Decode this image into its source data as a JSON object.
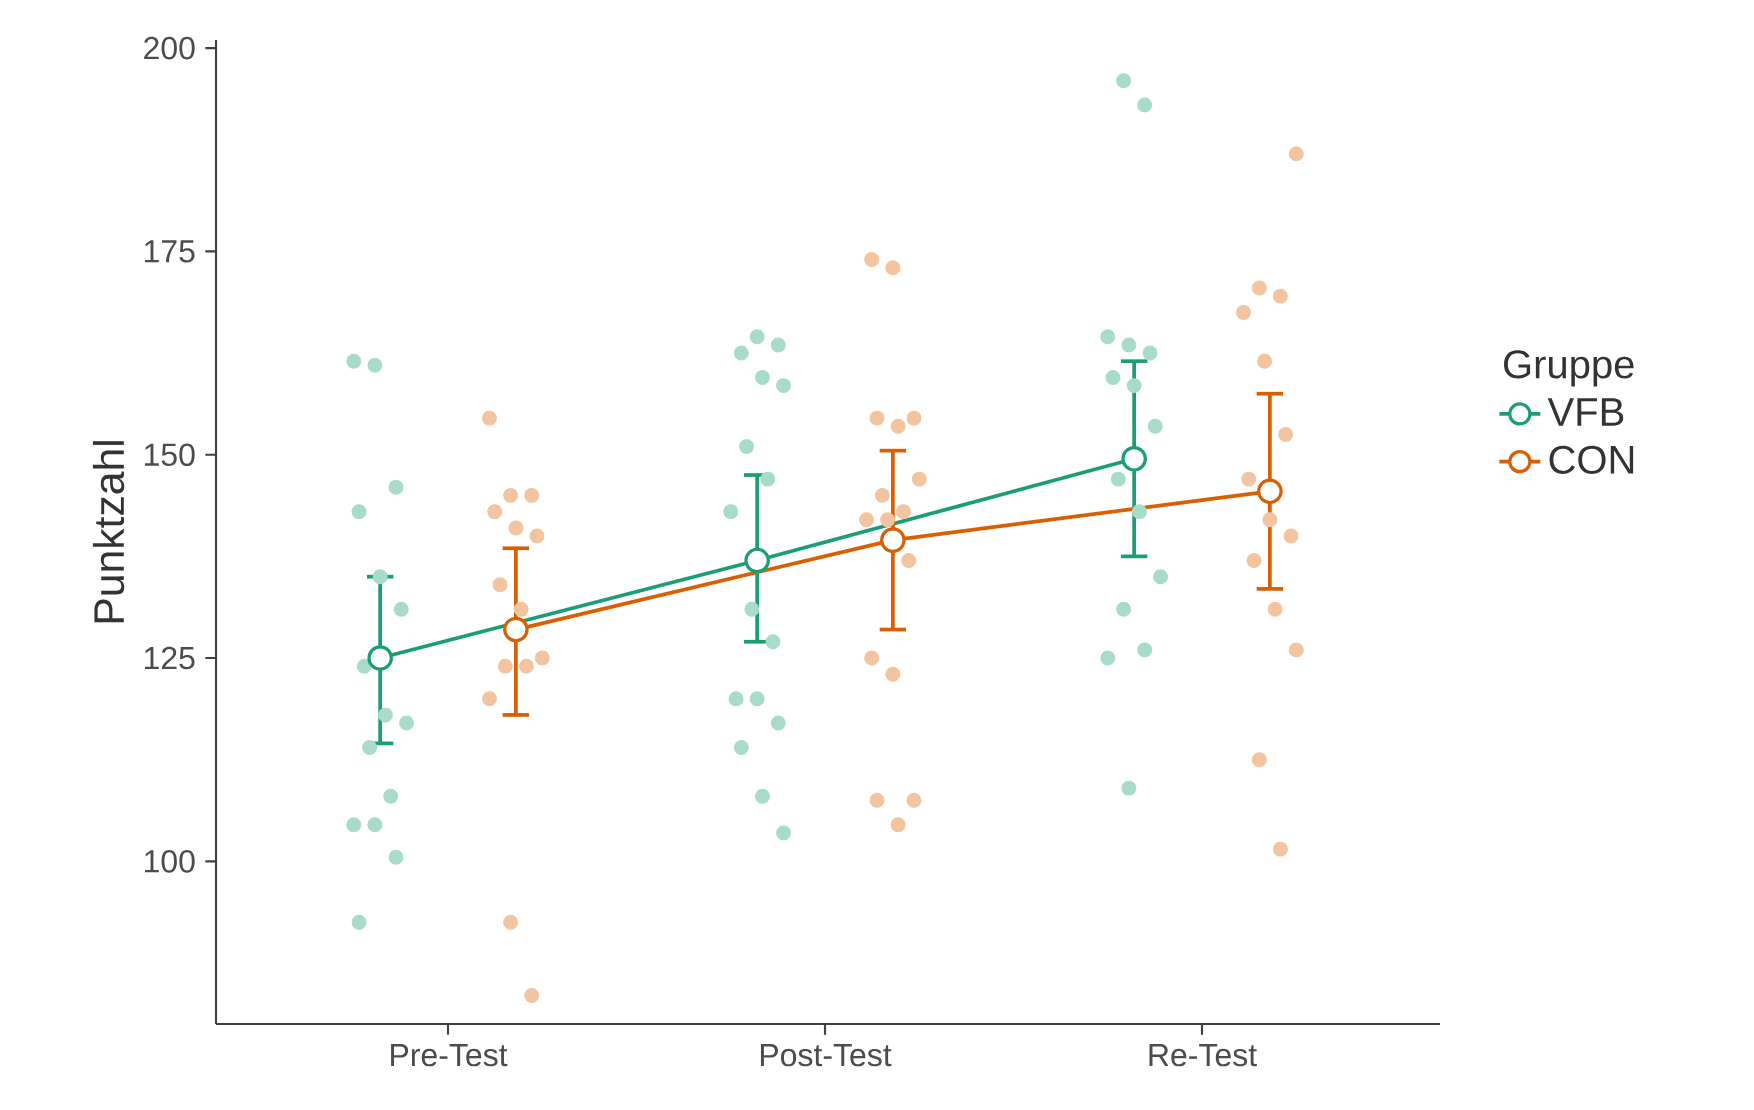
{
  "chart_data": {
    "type": "line",
    "ylabel": "Punktzahl",
    "legend_title": "Gruppe",
    "categories": [
      "Pre-Test",
      "Post-Test",
      "Re-Test"
    ],
    "ylim": [
      80,
      201
    ],
    "yticks": [
      100,
      125,
      150,
      175,
      200
    ],
    "grid": false,
    "legend": "right",
    "series": [
      {
        "type": "scatter",
        "color": "#a8dcc9",
        "marker": "circle",
        "x": [
          "Pre-Test",
          "Pre-Test",
          "Pre-Test",
          "Pre-Test",
          "Pre-Test",
          "Pre-Test",
          "Pre-Test",
          "Pre-Test",
          "Pre-Test",
          "Pre-Test",
          "Pre-Test",
          "Pre-Test",
          "Pre-Test",
          "Pre-Test",
          "Pre-Test",
          "Post-Test",
          "Post-Test",
          "Post-Test",
          "Post-Test",
          "Post-Test",
          "Post-Test",
          "Post-Test",
          "Post-Test",
          "Post-Test",
          "Post-Test",
          "Post-Test",
          "Post-Test",
          "Post-Test",
          "Post-Test",
          "Post-Test",
          "Post-Test",
          "Re-Test",
          "Re-Test",
          "Re-Test",
          "Re-Test",
          "Re-Test",
          "Re-Test",
          "Re-Test",
          "Re-Test",
          "Re-Test",
          "Re-Test",
          "Re-Test",
          "Re-Test",
          "Re-Test",
          "Re-Test",
          "Re-Test"
        ],
        "values": [
          161.5,
          161,
          146,
          143,
          135,
          131,
          124,
          118,
          117,
          114,
          108,
          104.5,
          104.5,
          100.5,
          92.5,
          164.5,
          163.5,
          162.5,
          159.5,
          158.5,
          151,
          147,
          143,
          131,
          127,
          120,
          120,
          117,
          114,
          108,
          103.5,
          196,
          193,
          164.5,
          163.5,
          162.5,
          159.5,
          158.5,
          153.5,
          147,
          143,
          135,
          131,
          126,
          125,
          109
        ]
      },
      {
        "type": "scatter",
        "color": "#f3c4a0",
        "marker": "circle",
        "x": [
          "Pre-Test",
          "Pre-Test",
          "Pre-Test",
          "Pre-Test",
          "Pre-Test",
          "Pre-Test",
          "Pre-Test",
          "Pre-Test",
          "Pre-Test",
          "Pre-Test",
          "Pre-Test",
          "Pre-Test",
          "Pre-Test",
          "Pre-Test",
          "Post-Test",
          "Post-Test",
          "Post-Test",
          "Post-Test",
          "Post-Test",
          "Post-Test",
          "Post-Test",
          "Post-Test",
          "Post-Test",
          "Post-Test",
          "Post-Test",
          "Post-Test",
          "Post-Test",
          "Post-Test",
          "Post-Test",
          "Post-Test",
          "Re-Test",
          "Re-Test",
          "Re-Test",
          "Re-Test",
          "Re-Test",
          "Re-Test",
          "Re-Test",
          "Re-Test",
          "Re-Test",
          "Re-Test",
          "Re-Test",
          "Re-Test",
          "Re-Test",
          "Re-Test"
        ],
        "values": [
          154.5,
          145,
          145,
          143,
          141,
          140,
          134,
          131,
          125,
          124,
          124,
          120,
          92.5,
          83.5,
          174,
          173,
          154.5,
          154.5,
          153.5,
          147,
          145,
          143,
          142,
          142,
          137,
          125,
          123,
          107.5,
          107.5,
          104.5,
          187,
          170.5,
          169.5,
          167.5,
          161.5,
          152.5,
          147,
          142,
          140,
          137,
          131,
          126,
          112.5,
          101.5
        ]
      },
      {
        "name": "VFB",
        "color": "#1b9e77",
        "marker": "circle",
        "values": [
          125,
          137,
          149.5
        ],
        "errors": [
          [
            114.5,
            135
          ],
          [
            127,
            147.5
          ],
          [
            137.5,
            161.5
          ]
        ]
      },
      {
        "name": "CON",
        "color": "#d95f02",
        "marker": "circle",
        "values": [
          128.5,
          139.5,
          145.5
        ],
        "errors": [
          [
            118,
            138.5
          ],
          [
            128.5,
            150.5
          ],
          [
            133.5,
            157.5
          ]
        ]
      }
    ]
  }
}
